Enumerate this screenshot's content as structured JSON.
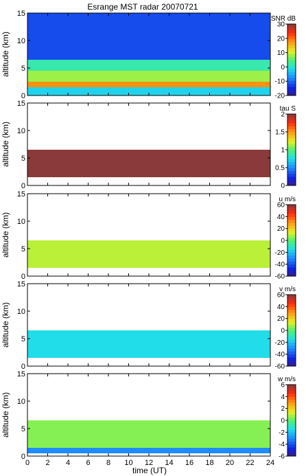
{
  "title": "Esrange MST radar 20070721",
  "xlabel": "time (UT)",
  "chart_data": [
    {
      "type": "heatmap",
      "title": "Esrange MST radar 20070721",
      "ylabel": "altitude (km)",
      "colorbar_label": "SNR dB",
      "xlim": [
        0,
        24
      ],
      "ylim": [
        0,
        15
      ],
      "x_ticks": [
        0,
        2,
        4,
        6,
        8,
        10,
        12,
        14,
        16,
        18,
        20,
        22,
        24
      ],
      "y_ticks": [
        0,
        5,
        10,
        15
      ],
      "color_ticks": [
        -20,
        -10,
        0,
        10,
        20,
        30
      ],
      "clim": [
        -20,
        30
      ],
      "bands": [
        {
          "ymin": 0,
          "ymax": 1.5,
          "value": -2
        },
        {
          "ymin": 1.5,
          "ymax": 2.5,
          "value": 18
        },
        {
          "ymin": 2.5,
          "ymax": 4.5,
          "value": 8
        },
        {
          "ymin": 4.5,
          "ymax": 6.5,
          "value": 2
        },
        {
          "ymin": 6.5,
          "ymax": 15,
          "value": -12
        }
      ]
    },
    {
      "type": "heatmap",
      "ylabel": "altitude (km)",
      "colorbar_label": "tau S",
      "xlim": [
        0,
        24
      ],
      "ylim": [
        0,
        15
      ],
      "x_ticks": [
        0,
        2,
        4,
        6,
        8,
        10,
        12,
        14,
        16,
        18,
        20,
        22,
        24
      ],
      "y_ticks": [
        0,
        5,
        10,
        15
      ],
      "color_ticks": [
        0,
        0.5,
        1,
        1.5,
        2
      ],
      "clim": [
        0,
        2
      ],
      "bands": [
        {
          "ymin": 1.5,
          "ymax": 6.5,
          "value": 2
        }
      ]
    },
    {
      "type": "heatmap",
      "ylabel": "altitude (km)",
      "colorbar_label": "u m/s",
      "xlim": [
        0,
        24
      ],
      "ylim": [
        0,
        15
      ],
      "x_ticks": [
        0,
        2,
        4,
        6,
        8,
        10,
        12,
        14,
        16,
        18,
        20,
        22,
        24
      ],
      "y_ticks": [
        0,
        5,
        10,
        15
      ],
      "color_ticks": [
        -60,
        -40,
        -20,
        0,
        20,
        40,
        60
      ],
      "clim": [
        -60,
        60
      ],
      "bands": [
        {
          "ymin": 1.5,
          "ymax": 6.5,
          "value": 10
        }
      ]
    },
    {
      "type": "heatmap",
      "ylabel": "altitude (km)",
      "colorbar_label": "v m/s",
      "xlim": [
        0,
        24
      ],
      "ylim": [
        0,
        15
      ],
      "x_ticks": [
        0,
        2,
        4,
        6,
        8,
        10,
        12,
        14,
        16,
        18,
        20,
        22,
        24
      ],
      "y_ticks": [
        0,
        5,
        10,
        15
      ],
      "color_ticks": [
        -60,
        -40,
        -20,
        0,
        20,
        40,
        60
      ],
      "clim": [
        -60,
        60
      ],
      "bands": [
        {
          "ymin": 1.5,
          "ymax": 6.5,
          "value": -15
        }
      ]
    },
    {
      "type": "heatmap",
      "ylabel": "altitude (km)",
      "colorbar_label": "w m/s",
      "xlim": [
        0,
        24
      ],
      "ylim": [
        0,
        15
      ],
      "x_ticks": [
        0,
        2,
        4,
        6,
        8,
        10,
        12,
        14,
        16,
        18,
        20,
        22,
        24
      ],
      "y_ticks": [
        0,
        5,
        10,
        15
      ],
      "color_ticks": [
        -6,
        -4,
        -2,
        0,
        2,
        4,
        6
      ],
      "clim": [
        -6,
        6
      ],
      "bands": [
        {
          "ymin": 0.5,
          "ymax": 1.5,
          "value": -3
        },
        {
          "ymin": 1.5,
          "ymax": 6.5,
          "value": 0.5
        }
      ]
    }
  ]
}
